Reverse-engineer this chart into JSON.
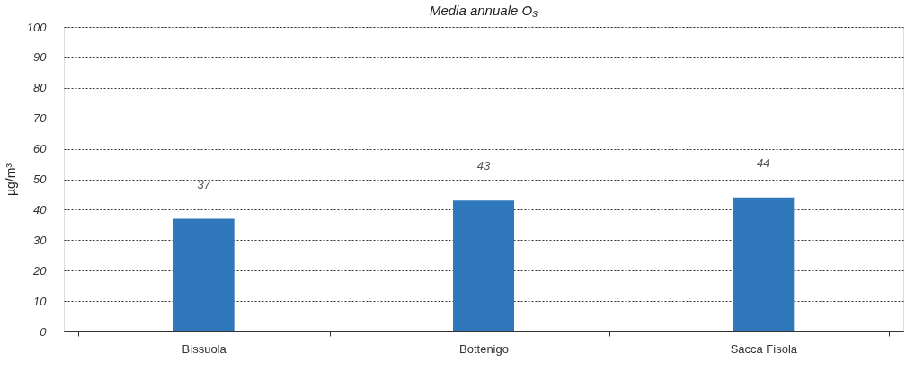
{
  "chart_data": {
    "type": "bar",
    "title": "Media annuale O₃",
    "ylabel": "µg/m³",
    "categories": [
      "Bissuola",
      "Bottenigo",
      "Sacca Fisola"
    ],
    "values": [
      37,
      43,
      44
    ],
    "color": "#2f78bb",
    "ylim": [
      0,
      100
    ],
    "yticks": [
      0,
      10,
      20,
      30,
      40,
      50,
      60,
      70,
      80,
      90,
      100
    ],
    "grid": "y",
    "data_labels": true
  }
}
